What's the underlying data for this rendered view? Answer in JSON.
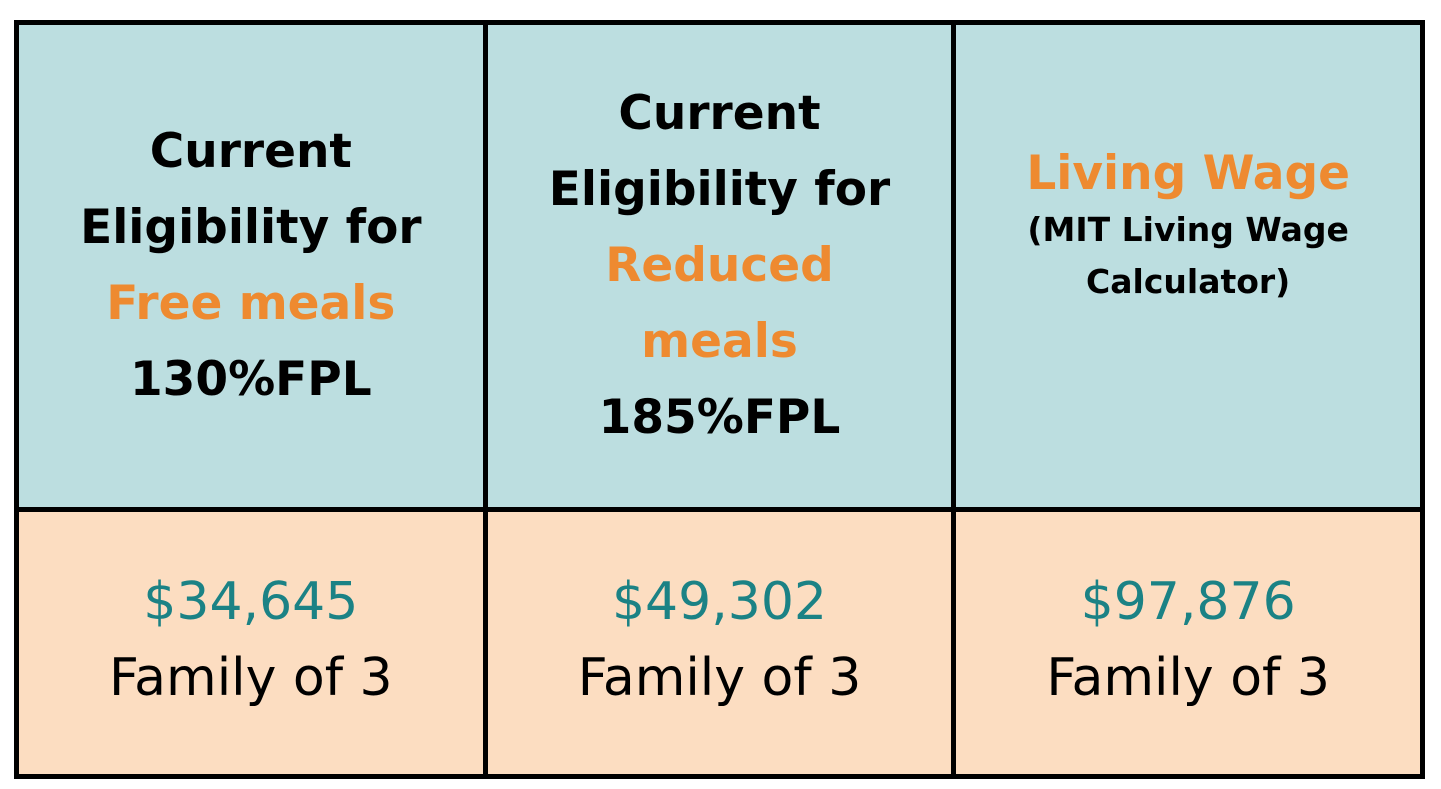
{
  "columns": [
    {
      "header": {
        "line1": "Current",
        "line2": "Eligibility for",
        "accent": "Free meals",
        "fpl": "130%FPL"
      },
      "amount": "$34,645",
      "desc": "Family of 3"
    },
    {
      "header": {
        "line1": "Current",
        "line2": "Eligibility for",
        "accent1": "Reduced",
        "accent2": "meals",
        "fpl": "185%FPL"
      },
      "amount": "$49,302",
      "desc": "Family of 3"
    },
    {
      "header": {
        "accent": "Living Wage",
        "sub1": "(MIT Living Wage",
        "sub2": "Calculator)"
      },
      "amount": "$97,876",
      "desc": "Family of 3"
    }
  ],
  "colors": {
    "header_bg": "#bcdee0",
    "value_bg": "#fcddc1",
    "accent": "#ee8a30",
    "amount": "#1b8285",
    "border": "#000000"
  }
}
